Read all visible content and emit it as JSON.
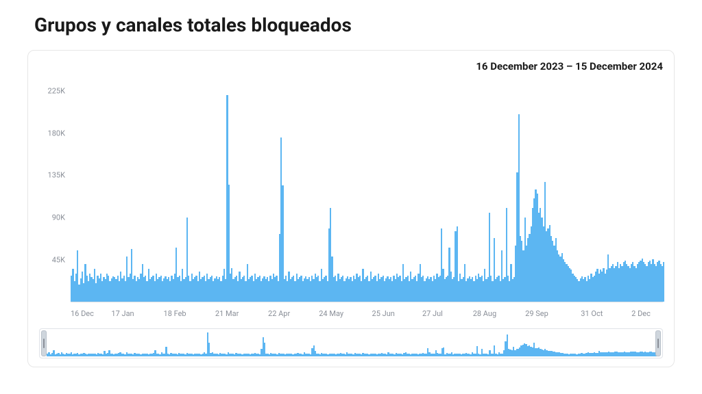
{
  "title": "Grupos y canales totales bloqueados",
  "date_range_label": "16 December 2023 – 15 December 2024",
  "chart": {
    "type": "bar",
    "bar_color": "#5cb6f2",
    "background_color": "#ffffff",
    "grid_color": "#e6e6e6",
    "axis_label_color": "#8a8f98",
    "axis_label_fontsize": 11,
    "title_fontsize": 28,
    "ylim": [
      0,
      240000
    ],
    "yticks": [
      {
        "value": 45000,
        "label": "45K"
      },
      {
        "value": 90000,
        "label": "90K"
      },
      {
        "value": 135000,
        "label": "135K"
      },
      {
        "value": 180000,
        "label": "180K"
      },
      {
        "value": 225000,
        "label": "225K"
      }
    ],
    "xticks": [
      {
        "pos": 0.0,
        "label": "16 Dec"
      },
      {
        "pos": 0.088,
        "label": "17 Jan"
      },
      {
        "pos": 0.176,
        "label": "18 Feb"
      },
      {
        "pos": 0.264,
        "label": "21 Mar"
      },
      {
        "pos": 0.352,
        "label": "22 Apr"
      },
      {
        "pos": 0.44,
        "label": "24 May"
      },
      {
        "pos": 0.528,
        "label": "25 Jun"
      },
      {
        "pos": 0.611,
        "label": "27 Jul"
      },
      {
        "pos": 0.699,
        "label": "28 Aug"
      },
      {
        "pos": 0.787,
        "label": "29 Sep"
      },
      {
        "pos": 0.88,
        "label": "31 Oct"
      },
      {
        "pos": 0.963,
        "label": "2 Dec"
      }
    ],
    "values": [
      28000,
      35000,
      22000,
      30000,
      55000,
      18000,
      25000,
      32000,
      20000,
      40000,
      28000,
      22000,
      30000,
      26000,
      24000,
      35000,
      20000,
      28000,
      25000,
      30000,
      22000,
      26000,
      24000,
      30000,
      28000,
      22000,
      25000,
      27000,
      26000,
      24000,
      28000,
      22000,
      32000,
      25000,
      28000,
      22000,
      48000,
      26000,
      30000,
      56000,
      24000,
      28000,
      22000,
      26000,
      24000,
      30000,
      40000,
      26000,
      28000,
      22000,
      35000,
      24000,
      26000,
      28000,
      22000,
      30000,
      24000,
      26000,
      28000,
      22000,
      25000,
      27000,
      24000,
      26000,
      22000,
      28000,
      24000,
      30000,
      58000,
      26000,
      28000,
      22000,
      35000,
      24000,
      26000,
      90000,
      28000,
      22000,
      30000,
      24000,
      26000,
      28000,
      22000,
      32000,
      24000,
      26000,
      28000,
      22000,
      30000,
      24000,
      26000,
      28000,
      22000,
      25000,
      27000,
      24000,
      26000,
      22000,
      28000,
      35000,
      24000,
      220000,
      125000,
      30000,
      36000,
      24000,
      26000,
      28000,
      22000,
      32000,
      24000,
      26000,
      28000,
      22000,
      40000,
      24000,
      26000,
      28000,
      22000,
      30000,
      24000,
      26000,
      28000,
      22000,
      25000,
      27000,
      24000,
      26000,
      22000,
      28000,
      24000,
      30000,
      26000,
      28000,
      22000,
      72000,
      175000,
      124000,
      24000,
      28000,
      22000,
      32000,
      24000,
      26000,
      28000,
      22000,
      30000,
      24000,
      26000,
      28000,
      22000,
      25000,
      27000,
      24000,
      26000,
      22000,
      28000,
      24000,
      30000,
      26000,
      28000,
      22000,
      35000,
      24000,
      26000,
      28000,
      22000,
      78000,
      100000,
      48000,
      26000,
      28000,
      22000,
      30000,
      24000,
      26000,
      28000,
      22000,
      25000,
      27000,
      24000,
      26000,
      22000,
      28000,
      24000,
      30000,
      26000,
      28000,
      22000,
      35000,
      24000,
      26000,
      28000,
      22000,
      32000,
      24000,
      26000,
      28000,
      22000,
      30000,
      24000,
      26000,
      28000,
      22000,
      25000,
      27000,
      24000,
      26000,
      22000,
      28000,
      24000,
      30000,
      26000,
      28000,
      22000,
      40000,
      24000,
      26000,
      28000,
      22000,
      32000,
      24000,
      26000,
      28000,
      22000,
      30000,
      40000,
      26000,
      28000,
      22000,
      25000,
      27000,
      24000,
      26000,
      22000,
      28000,
      24000,
      30000,
      26000,
      28000,
      78000,
      35000,
      24000,
      26000,
      28000,
      58000,
      32000,
      24000,
      26000,
      75000,
      80000,
      22000,
      30000,
      24000,
      26000,
      40000,
      22000,
      25000,
      27000,
      24000,
      26000,
      22000,
      28000,
      24000,
      30000,
      26000,
      28000,
      22000,
      35000,
      24000,
      26000,
      95000,
      28000,
      22000,
      68000,
      24000,
      26000,
      28000,
      22000,
      55000,
      24000,
      26000,
      100000,
      28000,
      22000,
      40000,
      24000,
      26000,
      60000,
      138000,
      200000,
      70000,
      65000,
      55000,
      90000,
      60000,
      68000,
      72000,
      80000,
      100000,
      110000,
      120000,
      115000,
      95000,
      100000,
      90000,
      80000,
      128000,
      75000,
      78000,
      82000,
      70000,
      65000,
      60000,
      68000,
      55000,
      50000,
      48000,
      52000,
      45000,
      42000,
      40000,
      38000,
      36000,
      34000,
      30000,
      28000,
      26000,
      24000,
      22000,
      25000,
      27000,
      24000,
      26000,
      22000,
      28000,
      24000,
      30000,
      26000,
      28000,
      32000,
      35000,
      30000,
      34000,
      32000,
      36000,
      30000,
      34000,
      50000,
      36000,
      38000,
      40000,
      36000,
      38000,
      42000,
      36000,
      40000,
      38000,
      42000,
      44000,
      40000,
      38000,
      36000,
      40000,
      42000,
      38000,
      36000,
      40000,
      42000,
      44000,
      46000,
      42000,
      40000,
      38000,
      42000,
      44000,
      40000,
      45000,
      40000,
      38000,
      42000,
      44000,
      40000,
      38000,
      42000
    ]
  },
  "overview": {
    "bar_color": "#5cb6f2",
    "handle_color": "#cfd6dd",
    "border_color": "#e0e3e8"
  }
}
